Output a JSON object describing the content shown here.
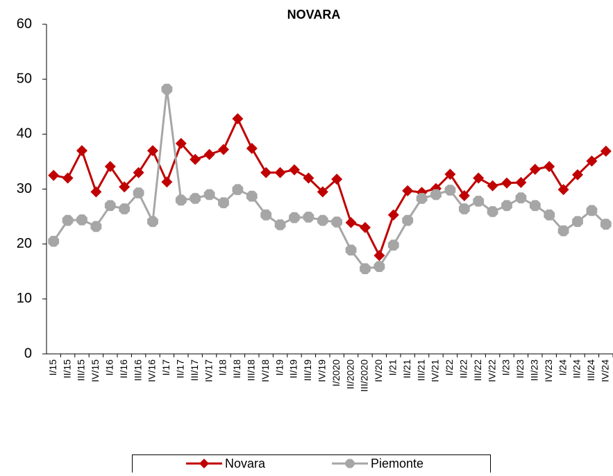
{
  "chart_data": {
    "type": "line",
    "title": "NOVARA",
    "categories": [
      "I/15",
      "II/15",
      "III/15",
      "IV/15",
      "I/16",
      "II/16",
      "III/16",
      "IV/16",
      "I/17",
      "II/17",
      "III/17",
      "IV/17",
      "I/18",
      "II/18",
      "III/18",
      "IV/18",
      "I/19",
      "II/19",
      "III/19",
      "IV/19",
      "I/2020",
      "II/2020",
      "III/2020",
      "IV/20",
      "I/21",
      "II/21",
      "III/21",
      "IV/21",
      "I/22",
      "II/22",
      "III/22",
      "IV/22",
      "I/23",
      "II/23",
      "III/23",
      "IV/23",
      "I/24",
      "II/24",
      "III/24",
      "IV/24"
    ],
    "series": [
      {
        "name": "Novara",
        "color": "#c00000",
        "marker": "diamond",
        "values": [
          32.5,
          32,
          37,
          29.5,
          34.1,
          30.4,
          33,
          37,
          31.3,
          38.3,
          35.4,
          36.3,
          37.2,
          42.8,
          37.4,
          33,
          33,
          33.5,
          32,
          29.5,
          31.8,
          23.9,
          23,
          17.9,
          25.3,
          29.7,
          29.4,
          30.1,
          32.7,
          28.8,
          32,
          30.6,
          31.1,
          31.2,
          33.6,
          34.1,
          29.9,
          32.6,
          35.1,
          36.9
        ]
      },
      {
        "name": "Piemonte",
        "color": "#a6a6a6",
        "marker": "octagon",
        "values": [
          20.5,
          24.3,
          24.4,
          23.2,
          27,
          26.4,
          29.3,
          24.1,
          48.2,
          28,
          28.3,
          29,
          27.5,
          29.9,
          28.7,
          25.3,
          23.5,
          24.8,
          24.9,
          24.3,
          24,
          18.9,
          15.5,
          15.9,
          19.8,
          24.3,
          28.3,
          29,
          29.8,
          26.4,
          27.8,
          25.9,
          27,
          28.4,
          27,
          25.3,
          22.4,
          24.1,
          26.1,
          23.6
        ]
      }
    ],
    "ylim": [
      0,
      60
    ],
    "yticks": [
      0,
      10,
      20,
      30,
      40,
      50,
      60
    ],
    "grid": false,
    "legend": "bottom"
  }
}
